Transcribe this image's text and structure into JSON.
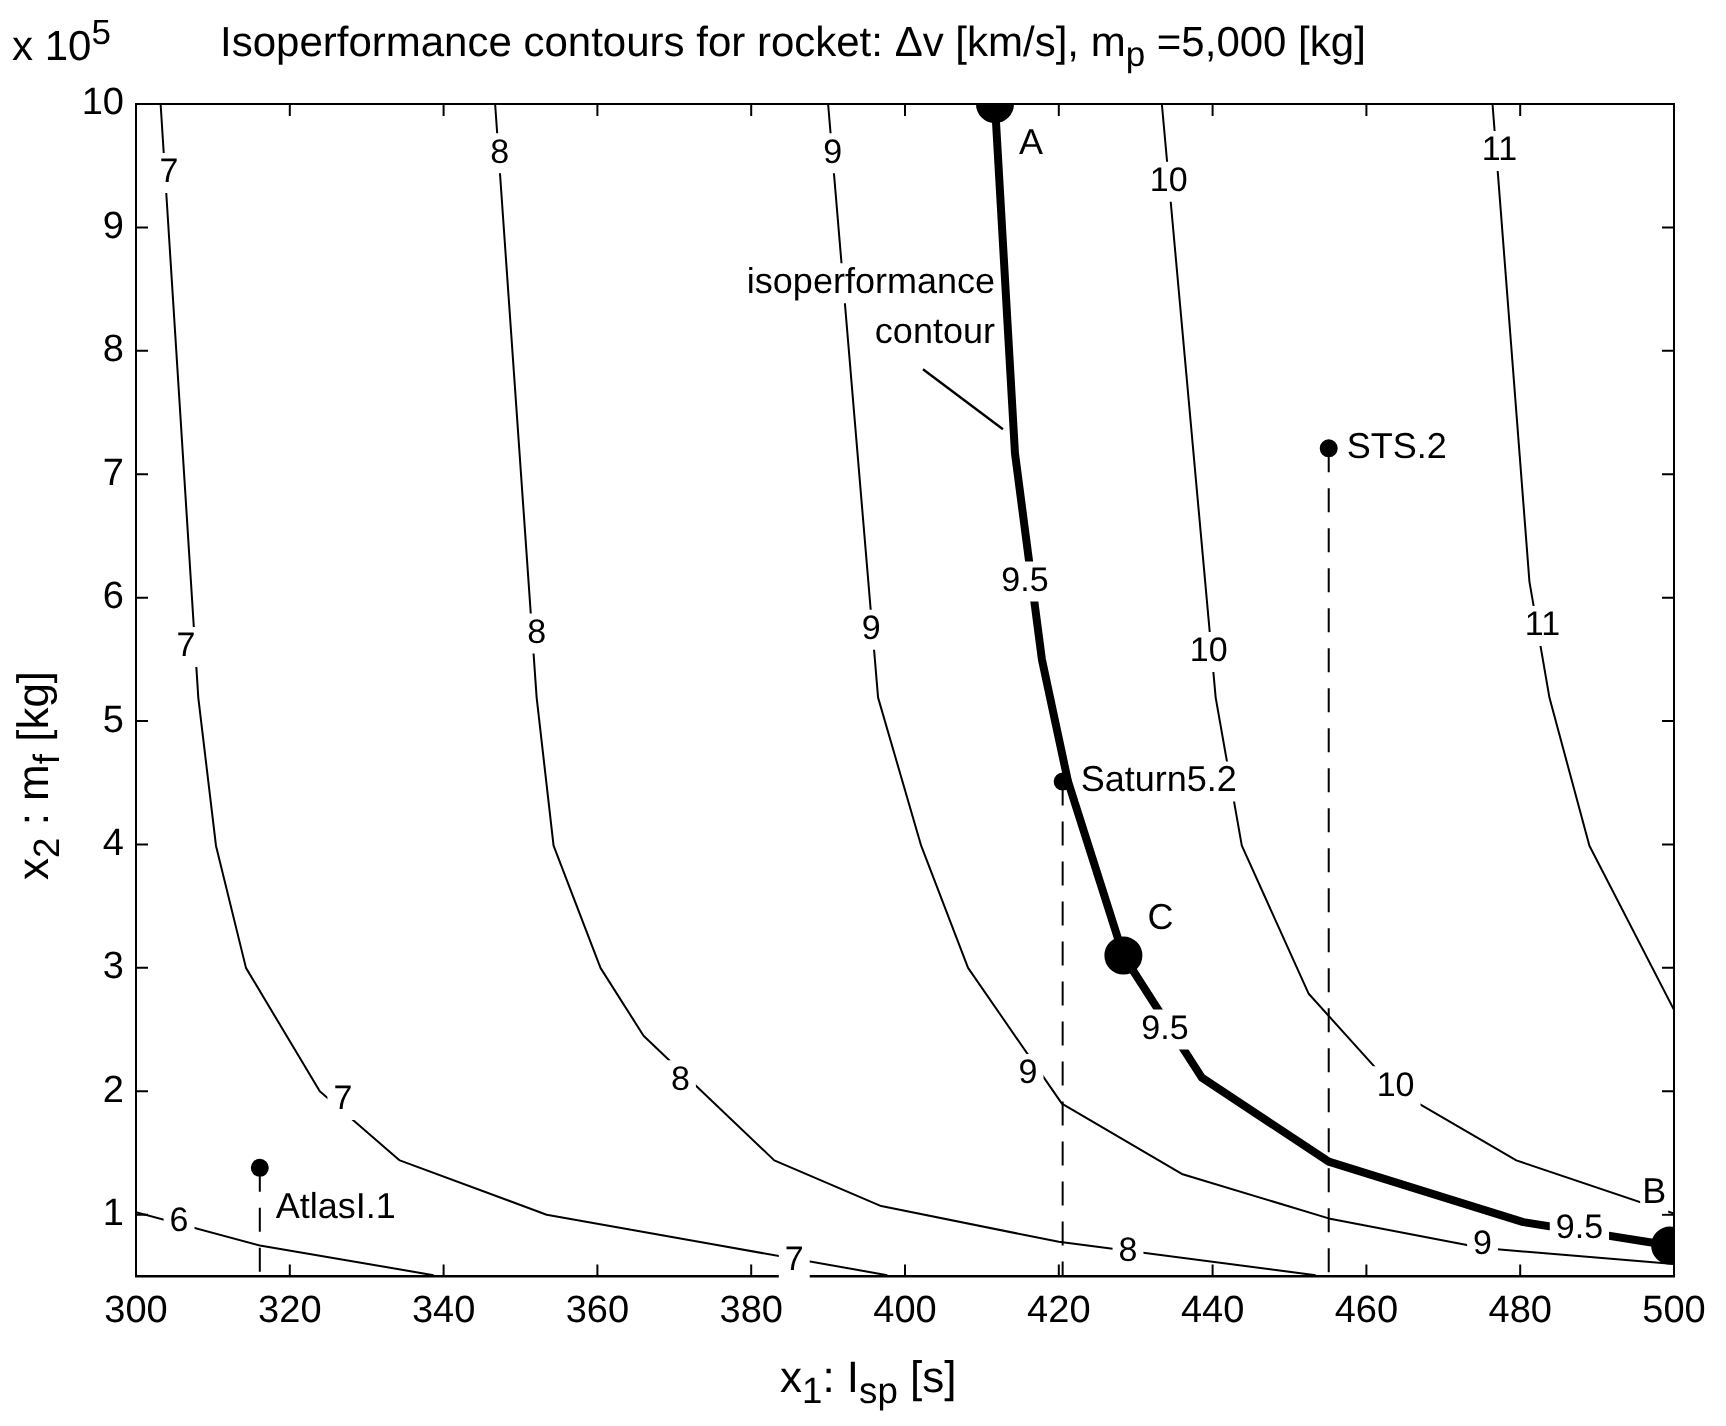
{
  "chart_data": {
    "type": "line",
    "title": "Isoperformance contours for rocket:   Δv [km/s], m$_{p}$ =5,000 [kg]",
    "xlabel": "x$_{1}$: I$_{sp}$ [s]",
    "ylabel": "x$_{2}$ : m$_{f}$ [kg]",
    "xlim": [
      300,
      500
    ],
    "xticks": [
      300,
      320,
      340,
      360,
      380,
      400,
      420,
      440,
      460,
      480,
      500
    ],
    "ylim": [
      0.5,
      10
    ],
    "yticks": [
      1,
      2,
      3,
      4,
      5,
      6,
      7,
      8,
      9,
      10
    ],
    "grid": false,
    "legend": false,
    "marker": "none",
    "line_style": "solid",
    "series": [
      {
        "color": "#000000",
        "x": [
          300,
          316.1,
          338.7
        ],
        "values": [
          1.02,
          0.75,
          0.51
        ]
      },
      {
        "color": "#000000",
        "x": [
          303.2,
          308.1,
          310.4,
          314.3,
          323.9,
          334.3,
          353.4,
          375,
          397.7
        ],
        "values": [
          10,
          5.19,
          3.99,
          3.0,
          2.0,
          1.44,
          1.0,
          0.76,
          0.51
        ]
      },
      {
        "color": "#000000",
        "x": [
          346.7,
          352.1,
          354.3,
          360.4,
          366,
          383.0,
          396.9,
          420,
          453.4
        ],
        "values": [
          10,
          5.19,
          3.99,
          3.0,
          2.45,
          1.44,
          1.07,
          0.78,
          0.51
        ]
      },
      {
        "color": "#000000",
        "x": [
          390.0,
          396.5,
          402.1,
          408.2,
          420.4,
          436.0,
          455.1,
          475.1,
          500
        ],
        "values": [
          10,
          5.19,
          3.99,
          3.0,
          1.9,
          1.33,
          0.97,
          0.73,
          0.6
        ]
      },
      {
        "color": "#000000",
        "x": [
          411.7,
          414.3,
          417.8,
          421.2,
          428.4,
          438.6,
          455.1,
          480.4,
          499.5
        ],
        "values": [
          10,
          7.17,
          5.5,
          4.51,
          3.1,
          2.11,
          1.43,
          0.94,
          0.75
        ]
      },
      {
        "color": "#000000",
        "x": [
          433.4,
          440.4,
          443.8,
          452.5,
          463.8,
          479.5,
          500
        ],
        "values": [
          10,
          5.19,
          3.99,
          2.79,
          2.01,
          1.44,
          1.01
        ]
      },
      {
        "color": "#000000",
        "x": [
          476.4,
          481.2,
          483.8,
          489.0,
          500
        ],
        "values": [
          10,
          6.13,
          5.19,
          3.99,
          2.66
        ]
      },
      {
        "type": "line",
        "color": "#000000",
        "line_style": "dashed",
        "x": [
          420.5,
          420.5
        ],
        "values": [
          4.51,
          0.5
        ]
      },
      {
        "type": "line",
        "color": "#000000",
        "line_style": "dashed",
        "x": [
          455.1,
          455.1
        ],
        "values": [
          7.21,
          0.5
        ]
      },
      {
        "type": "line",
        "color": "#000000",
        "line_style": "dashed",
        "x": [
          316.1,
          316.1
        ],
        "values": [
          1.38,
          0.5
        ]
      },
      {
        "type": "scatter",
        "color": "#000000",
        "marker": "circle",
        "x": [
          411.7,
          428.4,
          499.5
        ],
        "values": [
          10,
          3.1,
          0.75
        ]
      },
      {
        "type": "scatter",
        "color": "#000000",
        "marker": "circle",
        "x": [
          420.5,
          455.1,
          316.1
        ],
        "values": [
          4.51,
          7.21,
          1.38
        ]
      }
    ],
    "annotations": [
      "x 10$^{5}$",
      {
        "text": "isoperformance contour",
        "x": 414.3,
        "y": 7.17
      },
      {
        "text": "A",
        "x": 411.7,
        "y": 10
      },
      {
        "text": "B",
        "x": 499.5,
        "y": 0.75
      },
      {
        "text": "C",
        "x": 428.4,
        "y": 3.1
      },
      {
        "text": "Saturn5.2",
        "x": 420.5,
        "y": 4.51
      },
      {
        "text": "STS.2",
        "x": 455.1,
        "y": 7.21
      },
      {
        "text": "AtlasI.1",
        "x": 316.1,
        "y": 1.38
      },
      {
        "text": "6",
        "x": 305.6,
        "y": 0.94
      },
      {
        "text": "7",
        "x": 304.3,
        "y": 9.44
      },
      {
        "text": "7",
        "x": 306.5,
        "y": 5.6
      },
      {
        "text": "7",
        "x": 326.9,
        "y": 1.93
      },
      {
        "text": "7",
        "x": 385.6,
        "y": 0.63
      },
      {
        "text": "8",
        "x": 347.3,
        "y": 9.6
      },
      {
        "text": "8",
        "x": 352.1,
        "y": 5.71
      },
      {
        "text": "8",
        "x": 370.8,
        "y": 2.09
      },
      {
        "text": "8",
        "x": 429.0,
        "y": 0.7
      },
      {
        "text": "9",
        "x": 390.6,
        "y": 9.6
      },
      {
        "text": "9",
        "x": 395.6,
        "y": 5.74
      },
      {
        "text": "9",
        "x": 416.0,
        "y": 2.14
      },
      {
        "text": "9",
        "x": 475.1,
        "y": 0.76
      },
      {
        "text": "9.5",
        "x": 415.6,
        "y": 6.13
      },
      {
        "text": "9.5",
        "x": 433.8,
        "y": 2.5
      },
      {
        "text": "9.5",
        "x": 487.7,
        "y": 0.89
      },
      {
        "text": "10",
        "x": 434.3,
        "y": 9.37
      },
      {
        "text": "10",
        "x": 439.5,
        "y": 5.56
      },
      {
        "text": "10",
        "x": 463.8,
        "y": 2.04
      },
      {
        "text": "11",
        "x": 477.3,
        "y": 9.62
      },
      {
        "text": "11",
        "x": 482.9,
        "y": 5.77
      }
    ]
  }
}
